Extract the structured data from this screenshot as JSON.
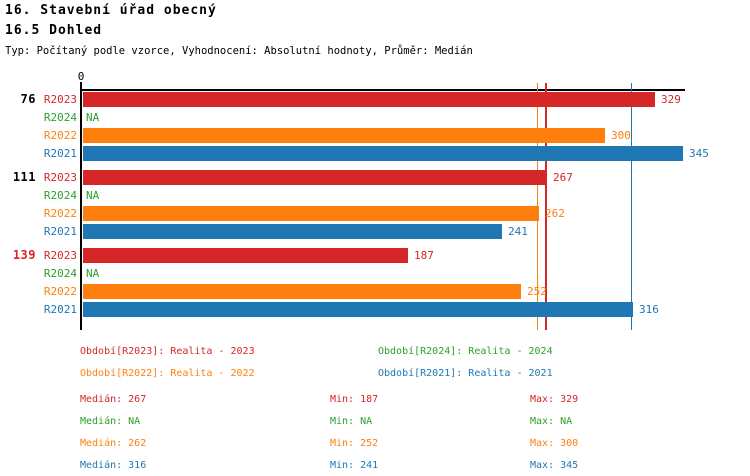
{
  "header": {
    "title": "16. Stavební úřad obecný",
    "subtitle": "16.5 Dohled",
    "meta_line": "Typ: Počítaný podle vzorce, Vyhodnocení: Absolutní hodnoty, Průměr: Medián"
  },
  "colors": {
    "R2023": "#d62728",
    "R2024": "#2ca02c",
    "R2022": "#ff7f0e",
    "R2021": "#1f77b4",
    "axis": "#000000",
    "group_label_default": "#000000",
    "group_label_highlight": "#d62728"
  },
  "chart_data": {
    "type": "bar",
    "orientation": "horizontal",
    "title": "16.5 Dohled",
    "x_axis": {
      "origin_tick_label": "0",
      "origin_value": 0,
      "grid": false
    },
    "value_max_shown": 345,
    "na_text": "NA",
    "series_order": [
      "R2023",
      "R2024",
      "R2022",
      "R2021"
    ],
    "groups": [
      {
        "label": "76",
        "label_color": "#000000",
        "rows": [
          {
            "series": "R2023",
            "value": 329,
            "display": "329"
          },
          {
            "series": "R2024",
            "value": null,
            "display": "NA"
          },
          {
            "series": "R2022",
            "value": 300,
            "display": "300"
          },
          {
            "series": "R2021",
            "value": 345,
            "display": "345"
          }
        ]
      },
      {
        "label": "111",
        "label_color": "#000000",
        "rows": [
          {
            "series": "R2023",
            "value": 267,
            "display": "267"
          },
          {
            "series": "R2024",
            "value": null,
            "display": "NA"
          },
          {
            "series": "R2022",
            "value": 262,
            "display": "262"
          },
          {
            "series": "R2021",
            "value": 241,
            "display": "241"
          }
        ]
      },
      {
        "label": "139",
        "label_color": "#d62728",
        "rows": [
          {
            "series": "R2023",
            "value": 187,
            "display": "187"
          },
          {
            "series": "R2024",
            "value": null,
            "display": "NA"
          },
          {
            "series": "R2022",
            "value": 252,
            "display": "252"
          },
          {
            "series": "R2021",
            "value": 316,
            "display": "316"
          }
        ]
      }
    ],
    "median_lines": [
      {
        "series": "R2022",
        "value": 262
      },
      {
        "series": "R2023",
        "value": 267
      },
      {
        "series": "R2021",
        "value": 316
      }
    ],
    "legend_position": "bottom",
    "legend": [
      {
        "series": "R2023",
        "text": "Období[R2023]: Realita - 2023",
        "col": 0,
        "row": 0
      },
      {
        "series": "R2024",
        "text": "Období[R2024]: Realita - 2024",
        "col": 1,
        "row": 0
      },
      {
        "series": "R2022",
        "text": "Období[R2022]: Realita - 2022",
        "col": 0,
        "row": 1
      },
      {
        "series": "R2021",
        "text": "Období[R2021]: Realita - 2021",
        "col": 1,
        "row": 1
      }
    ],
    "stats": {
      "median_label": "Medián: ",
      "min_label": "Min: ",
      "max_label": "Max: ",
      "rows": [
        {
          "series": "R2023",
          "median": "267",
          "min": "187",
          "max": "329"
        },
        {
          "series": "R2024",
          "median": "NA",
          "min": "NA",
          "max": "NA"
        },
        {
          "series": "R2022",
          "median": "262",
          "min": "252",
          "max": "300"
        },
        {
          "series": "R2021",
          "median": "316",
          "min": "241",
          "max": "345"
        }
      ]
    }
  }
}
